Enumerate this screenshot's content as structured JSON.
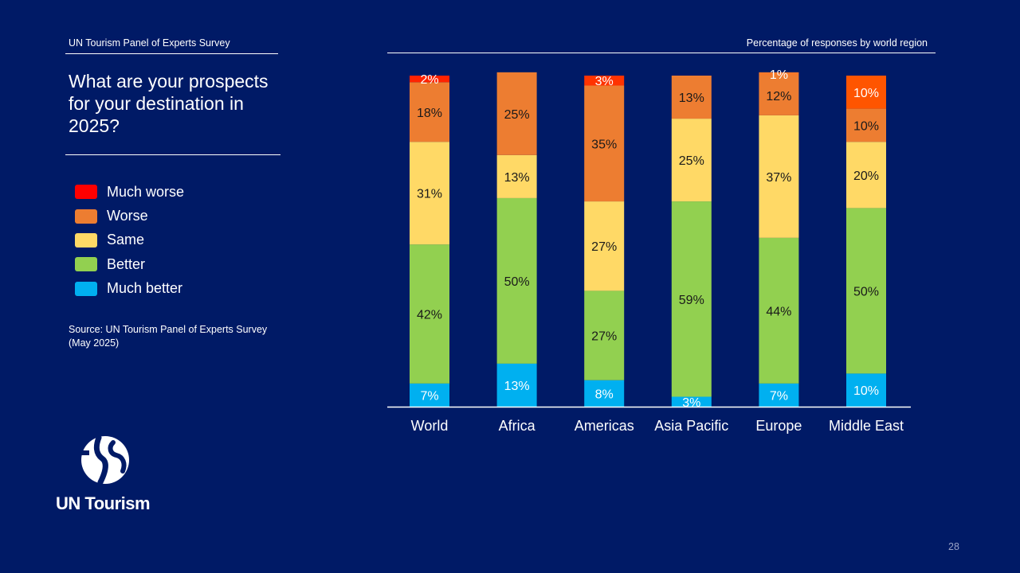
{
  "header": {
    "survey_label": "UN Tourism Panel of Experts Survey",
    "chart_caption": "Percentage of responses  by world region"
  },
  "title": "What are your prospects for your destination in 2025?",
  "source": "Source: UN Tourism Panel of Experts Survey (May 2025)",
  "brand": {
    "logo_text": "UN Tourism"
  },
  "page_number": "28",
  "legend": [
    {
      "label": "Much worse",
      "color": "#FF0000"
    },
    {
      "label": "Worse",
      "color": "#ED7D31"
    },
    {
      "label": "Same",
      "color": "#FFD966"
    },
    {
      "label": "Better",
      "color": "#92D050"
    },
    {
      "label": "Much better",
      "color": "#00B0F0"
    }
  ],
  "chart_data": {
    "type": "bar",
    "stacked": true,
    "title": "Percentage of responses  by world region",
    "categories": [
      "World",
      "Africa",
      "Americas",
      "Asia Pacific",
      "Europe",
      "Middle East"
    ],
    "ylim": [
      0,
      100
    ],
    "series": [
      {
        "name": "Much better",
        "color": "#00B0F0",
        "values": [
          7,
          13,
          8,
          3,
          7,
          10
        ],
        "labels": [
          "7%",
          "13%",
          "8%",
          "3%",
          "7%",
          "10%"
        ],
        "label_color": "#ffffff"
      },
      {
        "name": "Better",
        "color": "#92D050",
        "values": [
          42,
          50,
          27,
          59,
          44,
          50
        ],
        "labels": [
          "42%",
          "50%",
          "27%",
          "59%",
          "44%",
          "50%"
        ],
        "label_color": "#1a1a1a"
      },
      {
        "name": "Same",
        "color": "#FFD966",
        "values": [
          31,
          13,
          27,
          25,
          37,
          20
        ],
        "labels": [
          "31%",
          "13%",
          "27%",
          "25%",
          "37%",
          "20%"
        ],
        "label_color": "#1a1a1a"
      },
      {
        "name": "Worse",
        "color": "#ED7D31",
        "values": [
          18,
          25,
          35,
          13,
          12,
          10
        ],
        "labels": [
          "18%",
          "25%",
          "35%",
          "13%",
          "12%",
          "10%"
        ],
        "label_color": "#1a1a1a"
      },
      {
        "name": "Much worse",
        "color": "#FF0000",
        "values": [
          2,
          0,
          3,
          0,
          1,
          10
        ],
        "labels": [
          "2%",
          "",
          "3%",
          "",
          "1%",
          "10%"
        ],
        "label_color": "#ffffff",
        "bar_colors": [
          "#FF2200",
          "#FF2200",
          "#FF3300",
          "#FF3300",
          "#F4792B",
          "#FF5500"
        ]
      }
    ]
  }
}
